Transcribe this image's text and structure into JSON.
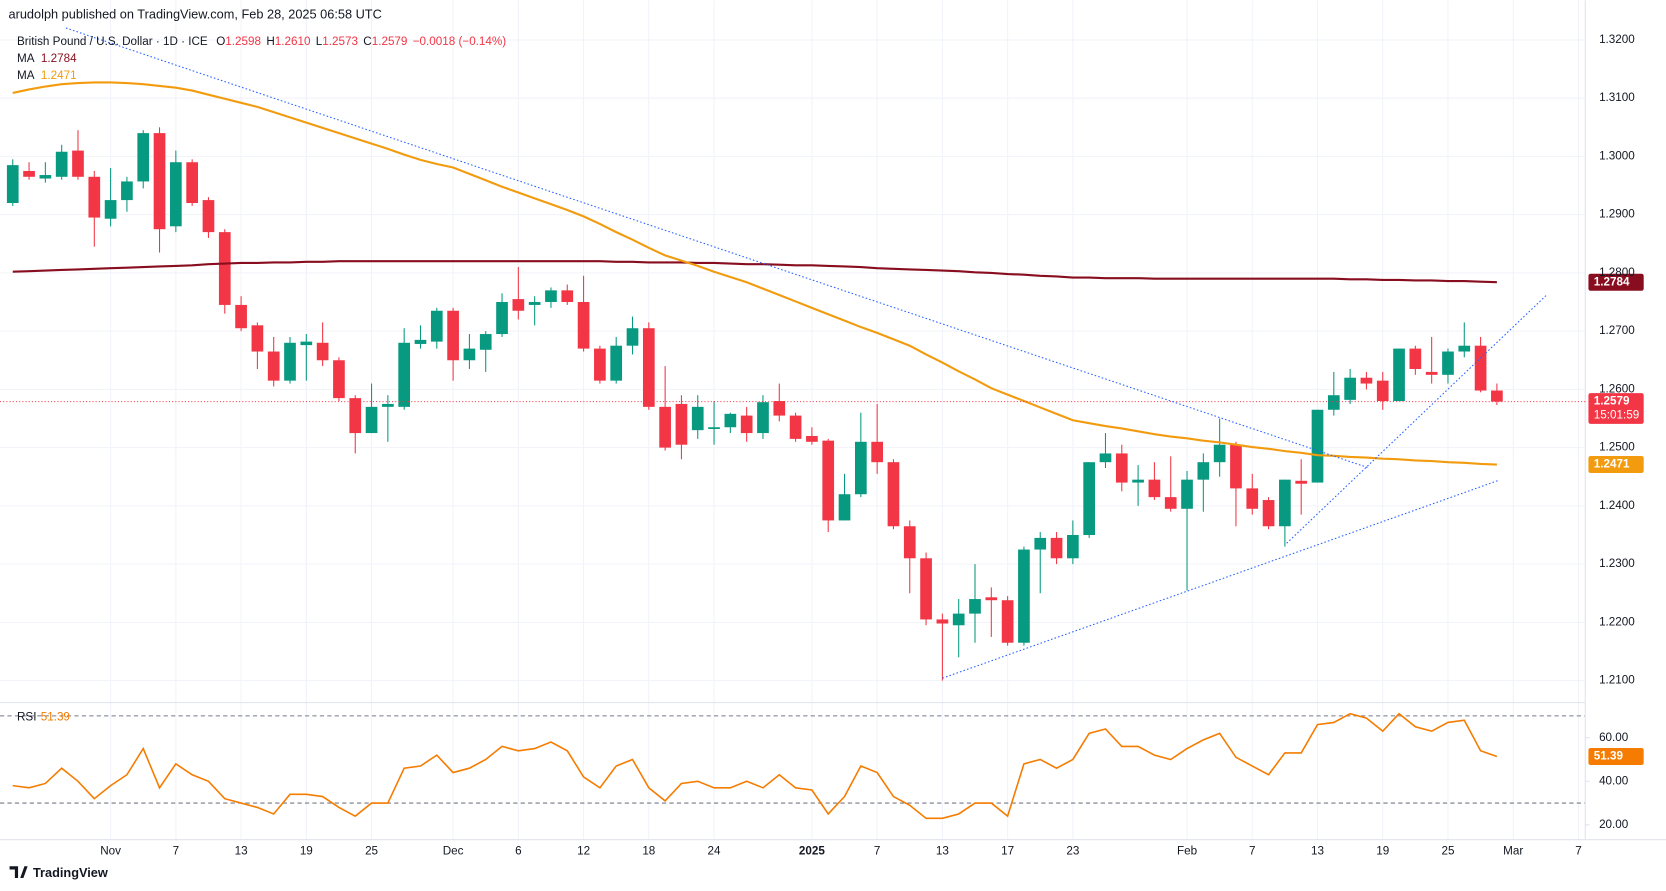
{
  "header": "arudolph published on TradingView.com, Feb 28, 2025 06:58 UTC",
  "footer": "TradingView",
  "chart_data": [
    {
      "type": "candlestick",
      "symbol": "British Pound / U.S. Dollar · 1D · ICE",
      "ohlc_legend": [
        {
          "key": "O",
          "value": "1.2598"
        },
        {
          "key": "H",
          "value": "1.2610"
        },
        {
          "key": "L",
          "value": "1.2573"
        },
        {
          "key": "C",
          "value": "1.2579"
        }
      ],
      "change": "−0.0018 (−0.14%)",
      "countdown": "15:01:59",
      "categories": [
        null,
        null,
        null,
        null,
        null,
        null,
        "Nov",
        null,
        null,
        null,
        "7",
        null,
        null,
        null,
        "13",
        null,
        null,
        null,
        "19",
        null,
        null,
        null,
        "25",
        null,
        null,
        null,
        null,
        "Dec",
        null,
        null,
        null,
        "6",
        null,
        null,
        null,
        "12",
        null,
        null,
        null,
        "18",
        null,
        null,
        null,
        "24",
        null,
        null,
        null,
        null,
        null,
        "2025",
        null,
        null,
        null,
        "7",
        null,
        null,
        null,
        "13",
        null,
        null,
        null,
        "17",
        null,
        null,
        null,
        "23",
        null,
        null,
        null,
        null,
        null,
        null,
        "Feb",
        null,
        null,
        null,
        "7",
        null,
        null,
        null,
        "13",
        null,
        null,
        null,
        "19",
        null,
        null,
        null,
        "25",
        null,
        null,
        null,
        "Mar",
        null,
        null,
        null,
        "7"
      ],
      "open": [
        1.292,
        1.2975,
        1.2962,
        1.2965,
        1.301,
        1.2965,
        1.2893,
        1.2925,
        1.2957,
        1.304,
        1.288,
        1.299,
        1.2925,
        1.287,
        1.2745,
        1.271,
        1.2665,
        1.2615,
        1.2676,
        1.268,
        1.265,
        1.2585,
        1.2525,
        1.257,
        1.257,
        1.2678,
        1.2682,
        1.2735,
        1.265,
        1.2668,
        1.2695,
        1.2755,
        1.2745,
        1.275,
        1.277,
        1.275,
        1.267,
        1.2615,
        1.2675,
        1.2705,
        1.257,
        1.2575,
        1.253,
        1.2532,
        1.2535,
        1.2555,
        1.2525,
        1.258,
        1.2555,
        1.252,
        1.2512,
        1.2375,
        1.242,
        1.251,
        1.2475,
        1.2365,
        1.231,
        1.2205,
        1.2195,
        1.2215,
        1.2243,
        1.2238,
        1.2165,
        1.2325,
        1.2345,
        1.231,
        1.235,
        1.2475,
        1.249,
        1.244,
        1.2445,
        1.2415,
        1.2395,
        1.2445,
        1.2475,
        1.2505,
        1.243,
        1.241,
        1.2365,
        1.2443,
        1.244,
        1.2565,
        1.2582,
        1.262,
        1.2615,
        1.258,
        1.267,
        1.263,
        1.2625,
        1.2665,
        1.2675,
        1.2598,
        null,
        null,
        null,
        null,
        null
      ],
      "high": [
        1.2995,
        1.299,
        1.299,
        1.302,
        1.3045,
        1.2975,
        1.298,
        1.2965,
        1.3045,
        1.305,
        1.301,
        1.2995,
        1.293,
        1.2875,
        1.276,
        1.2715,
        1.269,
        1.269,
        1.2695,
        1.2715,
        1.2655,
        1.259,
        1.261,
        1.259,
        1.2705,
        1.271,
        1.274,
        1.274,
        1.2695,
        1.27,
        1.2765,
        1.281,
        1.276,
        1.2775,
        1.278,
        1.2795,
        1.2675,
        1.269,
        1.2725,
        1.2715,
        1.264,
        1.259,
        1.259,
        1.258,
        1.256,
        1.257,
        1.259,
        1.261,
        1.256,
        1.2535,
        1.2515,
        1.2455,
        1.256,
        1.2575,
        1.248,
        1.2375,
        1.232,
        1.2215,
        1.224,
        1.23,
        1.226,
        1.2245,
        1.233,
        1.2355,
        1.2355,
        1.2375,
        1.2475,
        1.2525,
        1.2505,
        1.247,
        1.2475,
        1.2485,
        1.246,
        1.249,
        1.255,
        1.251,
        1.2455,
        1.2415,
        1.2445,
        1.248,
        1.2565,
        1.263,
        1.2635,
        1.263,
        1.263,
        1.267,
        1.2675,
        1.269,
        1.267,
        1.2715,
        1.269,
        1.261,
        null,
        null,
        null,
        null,
        null
      ],
      "low": [
        1.2915,
        1.296,
        1.2955,
        1.296,
        1.296,
        1.2845,
        1.288,
        1.2905,
        1.2945,
        1.2835,
        1.287,
        1.2915,
        1.286,
        1.273,
        1.27,
        1.2635,
        1.2605,
        1.261,
        1.2615,
        1.264,
        1.258,
        1.249,
        1.2525,
        1.251,
        1.2565,
        1.267,
        1.267,
        1.2615,
        1.2635,
        1.263,
        1.269,
        1.272,
        1.271,
        1.274,
        1.2745,
        1.2665,
        1.261,
        1.261,
        1.266,
        1.2565,
        1.2495,
        1.248,
        1.2515,
        1.2505,
        1.2525,
        1.251,
        1.2515,
        1.2545,
        1.251,
        1.2505,
        1.2355,
        1.2375,
        1.2415,
        1.2455,
        1.236,
        1.225,
        1.2195,
        1.21,
        1.214,
        1.2165,
        1.2175,
        1.216,
        1.216,
        1.225,
        1.23,
        1.23,
        1.2345,
        1.2465,
        1.2425,
        1.24,
        1.241,
        1.239,
        1.2255,
        1.239,
        1.245,
        1.2365,
        1.2385,
        1.236,
        1.233,
        1.2385,
        1.244,
        1.2555,
        1.2575,
        1.26,
        1.2565,
        1.258,
        1.2625,
        1.261,
        1.261,
        1.2655,
        1.2595,
        1.2573,
        null,
        null,
        null,
        null,
        null
      ],
      "close": [
        1.2985,
        1.2965,
        1.2968,
        1.3008,
        1.2965,
        1.2895,
        1.2925,
        1.2957,
        1.304,
        1.2875,
        1.299,
        1.292,
        1.287,
        1.2745,
        1.2705,
        1.2665,
        1.2615,
        1.268,
        1.2682,
        1.265,
        1.2585,
        1.2525,
        1.257,
        1.2575,
        1.268,
        1.2685,
        1.2735,
        1.265,
        1.267,
        1.2695,
        1.275,
        1.2735,
        1.275,
        1.277,
        1.275,
        1.267,
        1.2615,
        1.2675,
        1.2705,
        1.257,
        1.25,
        1.2505,
        1.257,
        1.2535,
        1.2558,
        1.2525,
        1.2578,
        1.2555,
        1.2515,
        1.251,
        1.2375,
        1.242,
        1.251,
        1.2475,
        1.2365,
        1.231,
        1.2205,
        1.2198,
        1.2215,
        1.224,
        1.2238,
        1.2165,
        1.2325,
        1.2345,
        1.231,
        1.235,
        1.2475,
        1.249,
        1.244,
        1.2445,
        1.2415,
        1.2395,
        1.2445,
        1.2475,
        1.2505,
        1.243,
        1.2395,
        1.2365,
        1.2445,
        1.2438,
        1.2565,
        1.259,
        1.262,
        1.261,
        1.258,
        1.267,
        1.2635,
        1.2625,
        1.2665,
        1.2675,
        1.2598,
        1.2579,
        null,
        null,
        null,
        null,
        null
      ],
      "up_color": "#089981",
      "down_color": "#f23645",
      "series": [
        {
          "name": "MA",
          "color": "#880e1f",
          "last": "1.2784",
          "values": [
            1.2802,
            1.2803,
            1.2804,
            1.2805,
            1.2806,
            1.2807,
            1.2808,
            1.2809,
            1.281,
            1.2811,
            1.2812,
            1.2813,
            1.2815,
            1.2816,
            1.2817,
            1.2817,
            1.2818,
            1.2818,
            1.2819,
            1.2819,
            1.282,
            1.282,
            1.282,
            1.282,
            1.282,
            1.282,
            1.282,
            1.282,
            1.282,
            1.282,
            1.282,
            1.282,
            1.282,
            1.282,
            1.282,
            1.282,
            1.282,
            1.2819,
            1.2819,
            1.2818,
            1.2818,
            1.2818,
            1.2817,
            1.2817,
            1.2816,
            1.2815,
            1.2815,
            1.2814,
            1.2813,
            1.2813,
            1.2812,
            1.2811,
            1.281,
            1.2808,
            1.2807,
            1.2806,
            1.2805,
            1.2804,
            1.2803,
            1.2801,
            1.28,
            1.2798,
            1.2797,
            1.2795,
            1.2794,
            1.2792,
            1.2792,
            1.2791,
            1.2791,
            1.2791,
            1.279,
            1.279,
            1.279,
            1.279,
            1.279,
            1.279,
            1.279,
            1.279,
            1.279,
            1.279,
            1.279,
            1.279,
            1.2789,
            1.2789,
            1.2788,
            1.2788,
            1.2787,
            1.2787,
            1.2786,
            1.2786,
            1.2785,
            1.2784,
            null,
            null,
            null,
            null,
            null
          ]
        },
        {
          "name": "MA",
          "color": "#f29b0e",
          "last": "1.2471",
          "values": [
            1.3109,
            1.3115,
            1.312,
            1.3124,
            1.3126,
            1.3127,
            1.3127,
            1.3126,
            1.3124,
            1.3121,
            1.3118,
            1.3113,
            1.3106,
            1.3099,
            1.3092,
            1.3085,
            1.3076,
            1.3067,
            1.3058,
            1.3049,
            1.304,
            1.3031,
            1.3022,
            1.3013,
            1.3003,
            1.2994,
            1.2987,
            1.2981,
            1.297,
            1.2959,
            1.2948,
            1.2938,
            1.2928,
            1.2918,
            1.2908,
            1.2897,
            1.2884,
            1.287,
            1.2857,
            1.2843,
            1.283,
            1.2821,
            1.2812,
            1.2802,
            1.2793,
            1.2784,
            1.2773,
            1.2762,
            1.2751,
            1.274,
            1.2729,
            1.2718,
            1.2707,
            1.2697,
            1.2686,
            1.2675,
            1.266,
            1.2646,
            1.2631,
            1.2617,
            1.2602,
            1.2591,
            1.258,
            1.2569,
            1.2558,
            1.2547,
            1.2542,
            1.2537,
            1.2533,
            1.2528,
            1.2523,
            1.2519,
            1.2516,
            1.2512,
            1.2509,
            1.2505,
            1.2501,
            1.2498,
            1.2494,
            1.2491,
            1.2487,
            1.2486,
            1.2484,
            1.2483,
            1.2481,
            1.248,
            1.2478,
            1.2477,
            1.2475,
            1.2474,
            1.2472,
            1.2471,
            null,
            null,
            null,
            null,
            null
          ]
        }
      ],
      "ylim": [
        1.2064,
        1.3268
      ],
      "yticks": [
        {
          "value": 1.21,
          "label": "1.2100"
        },
        {
          "value": 1.22,
          "label": "1.2200"
        },
        {
          "value": 1.23,
          "label": "1.2300"
        },
        {
          "value": 1.24,
          "label": "1.2400"
        },
        {
          "value": 1.25,
          "label": "1.2500"
        },
        {
          "value": 1.26,
          "label": "1.2600"
        },
        {
          "value": 1.27,
          "label": "1.2700"
        },
        {
          "value": 1.28,
          "label": "1.2800"
        },
        {
          "value": 1.29,
          "label": "1.2900"
        },
        {
          "value": 1.3,
          "label": "1.3000"
        },
        {
          "value": 1.31,
          "label": "1.3100"
        },
        {
          "value": 1.32,
          "label": "1.3200"
        }
      ],
      "grid": true
    },
    {
      "type": "line",
      "series": [
        {
          "name": "RSI",
          "color": "#f57c00",
          "last": "51.39",
          "values": [
            38,
            37,
            39,
            46,
            40,
            32,
            38,
            43,
            55,
            37,
            48,
            43,
            40,
            32,
            30,
            28,
            25,
            34,
            34,
            33,
            28,
            24,
            30,
            30,
            46,
            47,
            52,
            44,
            46,
            50,
            56,
            54,
            55,
            58,
            54,
            42,
            37,
            47,
            50,
            37,
            31,
            39,
            40,
            37,
            37,
            40,
            37,
            43,
            37,
            36,
            25,
            33,
            47,
            44,
            33,
            29,
            23,
            23,
            25,
            30,
            30,
            24,
            48,
            50,
            46,
            50,
            62,
            64,
            56,
            56,
            52,
            50,
            55,
            59,
            62,
            51,
            47,
            43,
            53,
            53,
            66,
            67,
            71,
            69,
            63,
            71,
            65,
            63,
            67,
            68,
            54,
            51.39,
            null,
            null,
            null,
            null,
            null
          ]
        }
      ],
      "ylim": [
        13.2,
        75.6
      ],
      "yticks": [
        {
          "value": 20,
          "label": "20.00"
        },
        {
          "value": 40,
          "label": "40.00"
        },
        {
          "value": 60,
          "label": "60.00"
        }
      ],
      "levels": [
        30,
        70
      ]
    }
  ]
}
